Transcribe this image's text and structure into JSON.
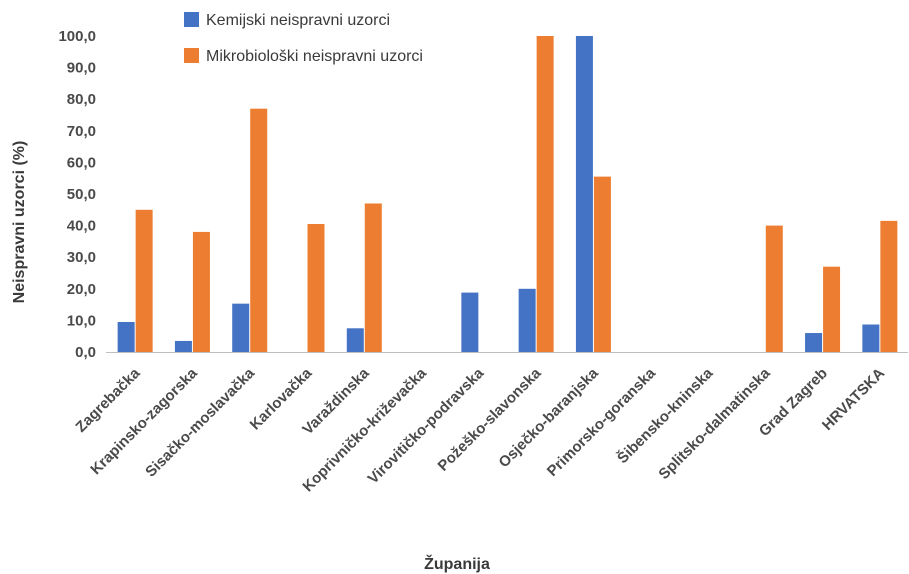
{
  "chart_data": {
    "type": "bar",
    "xlabel": "Županija",
    "ylabel": "Neispravni uzorci (%)",
    "ylim": [
      0,
      100
    ],
    "yticks": [
      "0,0",
      "10,0",
      "20,0",
      "30,0",
      "40,0",
      "50,0",
      "60,0",
      "70,0",
      "80,0",
      "90,0",
      "100,0"
    ],
    "grid": false,
    "legend_position": "top",
    "categories": [
      "Zagrebačka",
      "Krapinsko-zagorska",
      "Sisačko-moslavačka",
      "Karlovačka",
      "Varaždinska",
      "Koprivničko-križevačka",
      "Virovitičko-podravska",
      "Požeško-slavonska",
      "Osječko-baranjska",
      "Primorsko-goranska",
      "Šibensko-kninska",
      "Splitsko-dalmatinska",
      "Grad Zagreb",
      "HRVATSKA"
    ],
    "series": [
      {
        "name": "Kemijski neispravni uzorci",
        "color": "#4472c4",
        "values": [
          9.5,
          3.5,
          15.3,
          0,
          7.5,
          0,
          18.8,
          20.0,
          100.0,
          0,
          0,
          0,
          6.0,
          8.7
        ]
      },
      {
        "name": "Mikrobiološki neispravni uzorci",
        "color": "#ed7d31",
        "values": [
          45.0,
          38.0,
          77.0,
          40.5,
          47.0,
          0,
          0,
          100.0,
          55.5,
          0,
          0,
          40.0,
          27.0,
          41.5
        ]
      }
    ]
  }
}
